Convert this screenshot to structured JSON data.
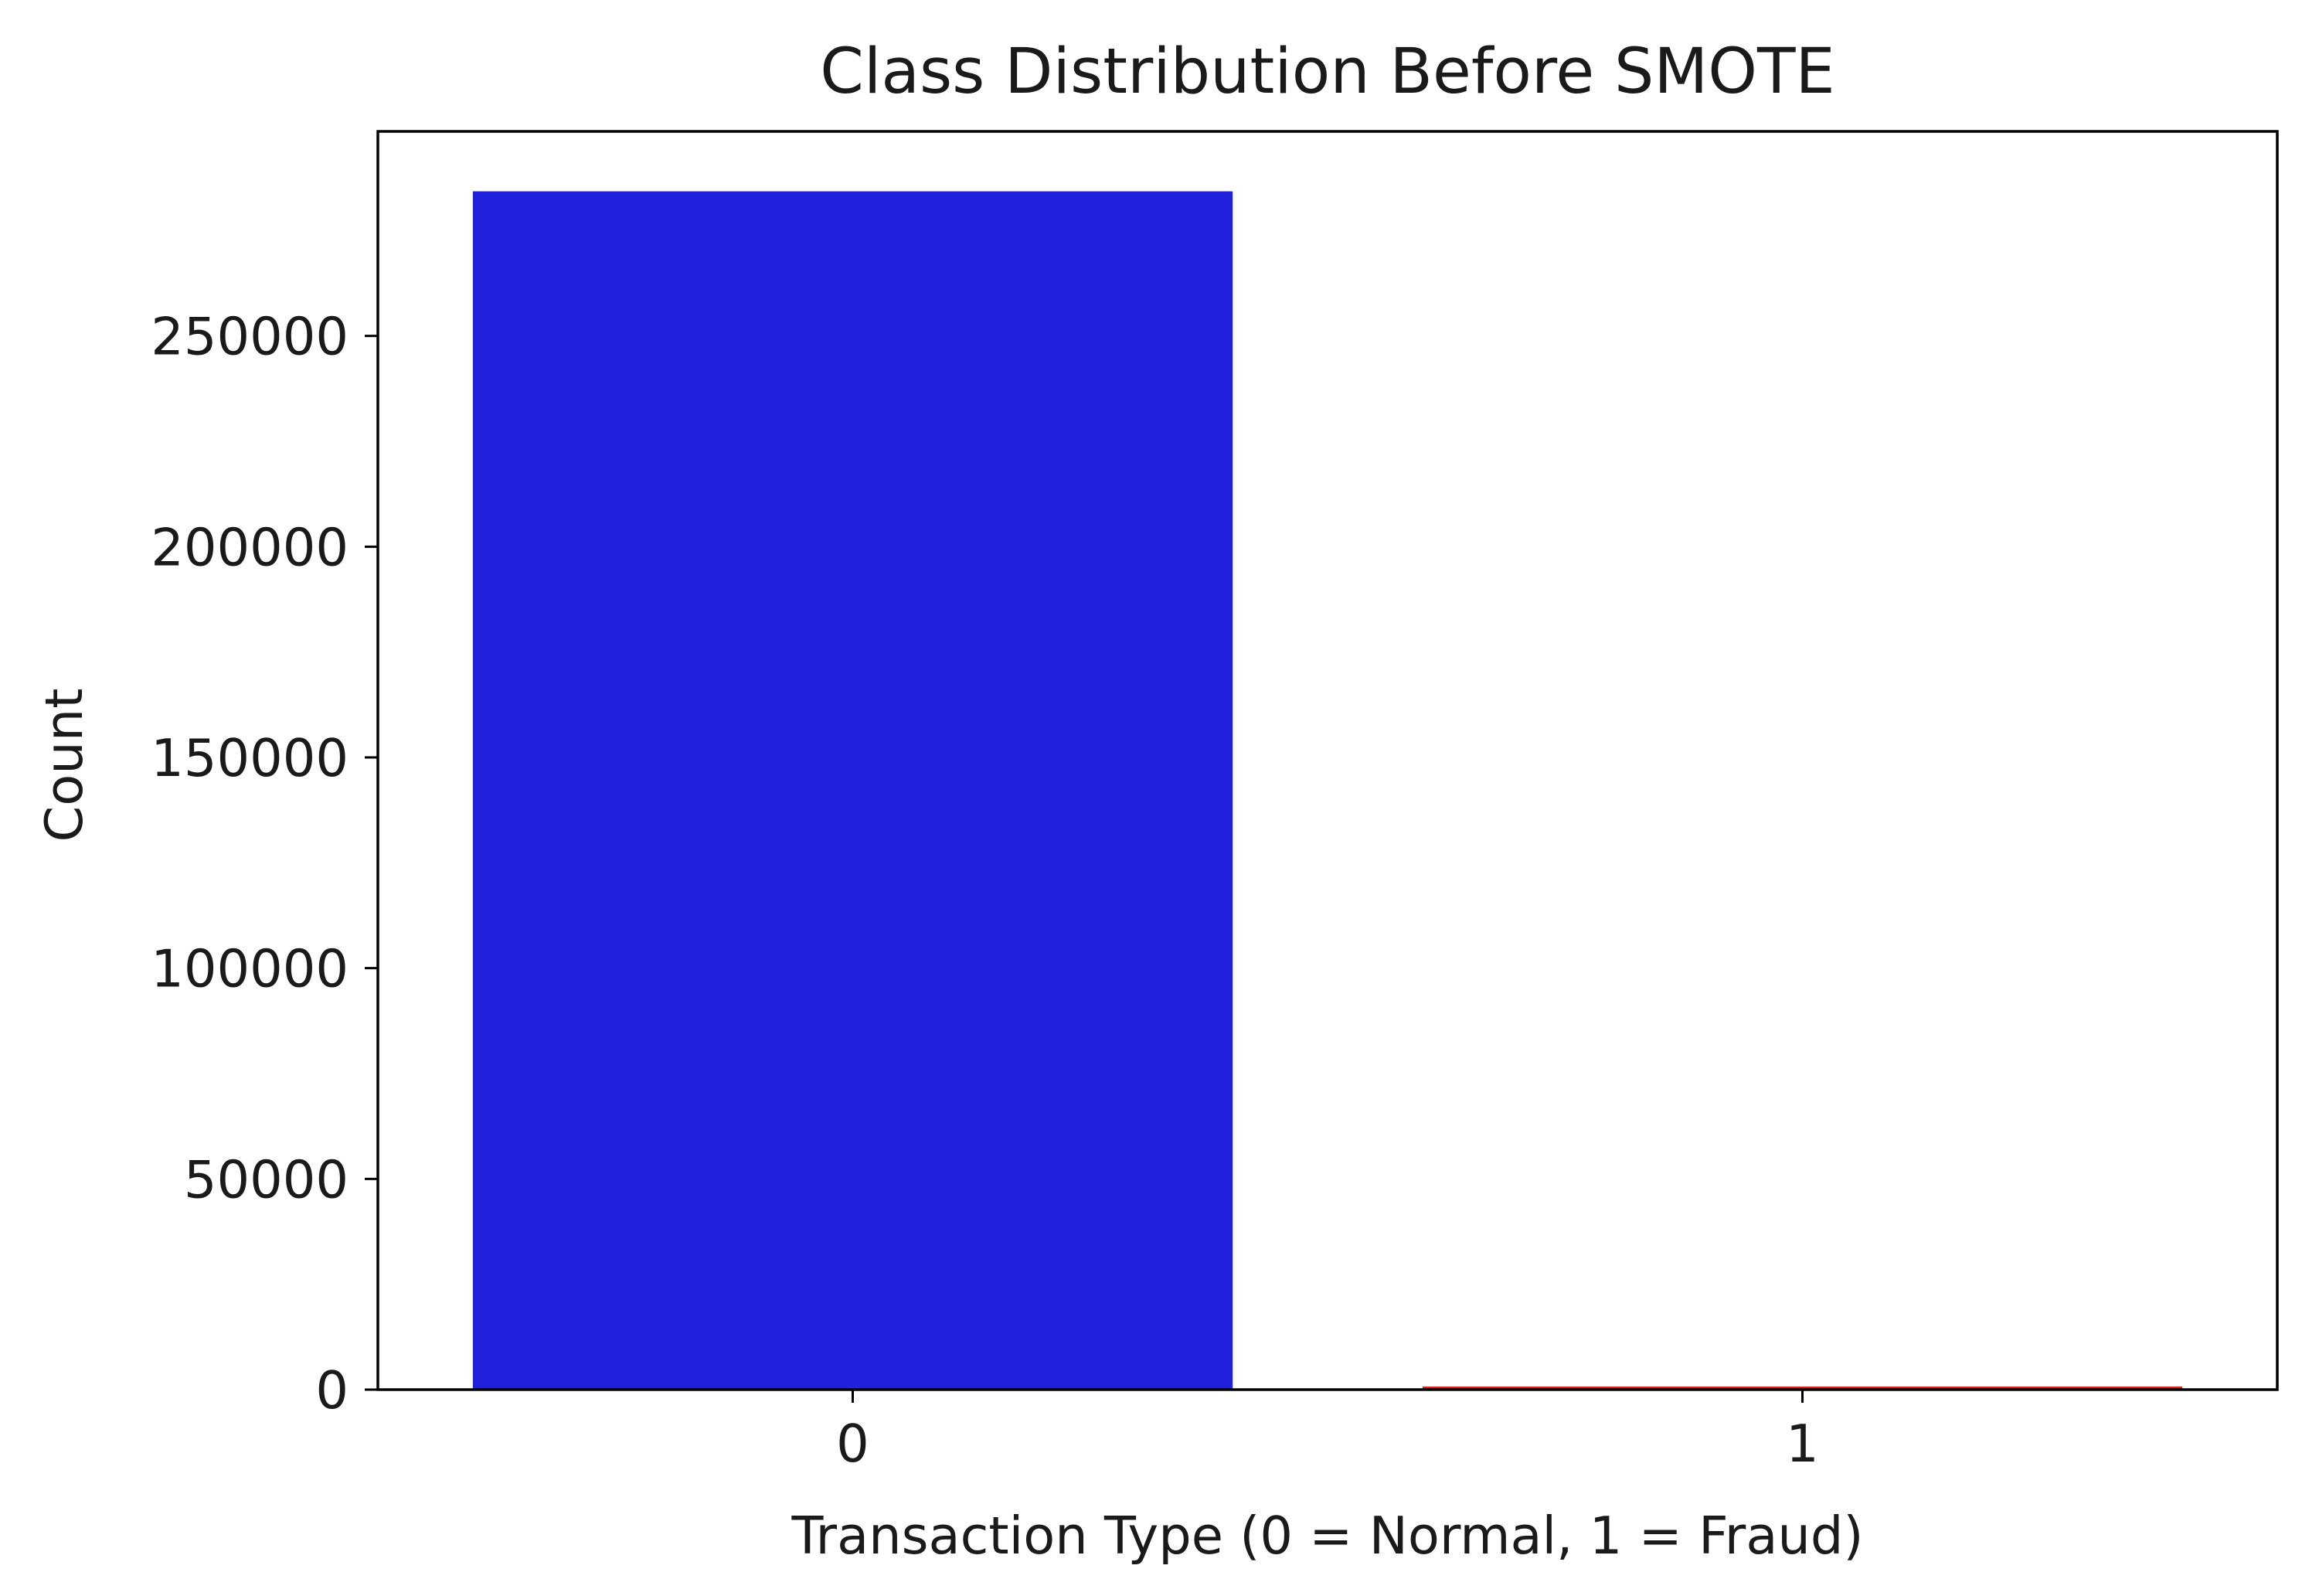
{
  "chart_data": {
    "type": "bar",
    "title": "Class Distribution Before SMOTE",
    "xlabel": "Transaction Type (0 = Normal, 1 = Fraud)",
    "ylabel": "Count",
    "categories": [
      "0",
      "1"
    ],
    "values": [
      284315,
      492
    ],
    "colors": [
      "#2020dd",
      "#dd2020"
    ],
    "ylim": [
      0,
      298536
    ],
    "yticks": [
      0,
      50000,
      100000,
      150000,
      200000,
      250000
    ],
    "grid": false,
    "legend": "none"
  }
}
